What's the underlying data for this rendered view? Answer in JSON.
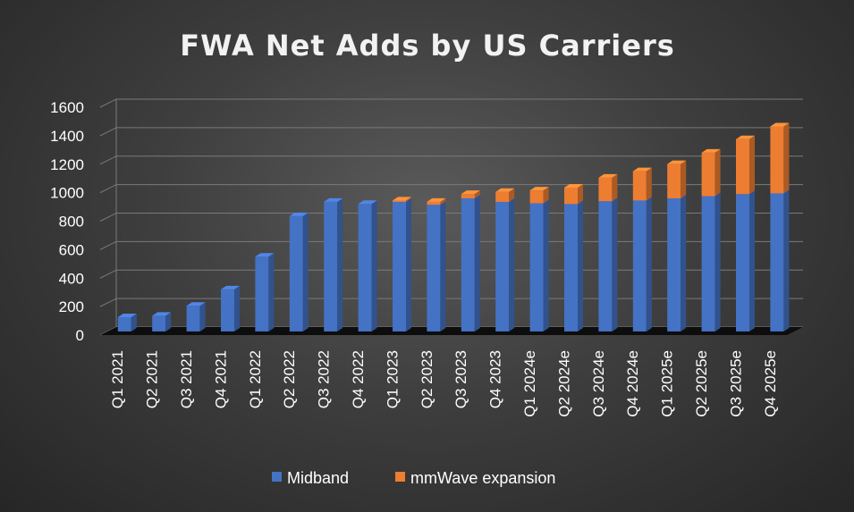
{
  "chart_data": {
    "type": "bar",
    "stacked": true,
    "three_d": true,
    "title": "FWA Net Adds by US Carriers",
    "xlabel": "",
    "ylabel": "",
    "ylim": [
      0,
      1600
    ],
    "yticks": [
      0,
      200,
      400,
      600,
      800,
      1000,
      1200,
      1400,
      1600
    ],
    "grid": true,
    "legend_position": "bottom",
    "categories": [
      "Q1 2021",
      "Q2 2021",
      "Q3 2021",
      "Q4 2021",
      "Q1 2022",
      "Q2 2022",
      "Q3 2022",
      "Q4 2022",
      "Q1 2023",
      "Q2 2023",
      "Q3 2023",
      "Q4 2023",
      "Q1 2024e",
      "Q2 2024e",
      "Q3 2024e",
      "Q4 2024e",
      "Q1 2025e",
      "Q2 2025e",
      "Q3 2025e",
      "Q4 2025e"
    ],
    "series": [
      {
        "name": "Midband",
        "color": "#4472c4",
        "values": [
          100,
          110,
          180,
          295,
          525,
          810,
          910,
          895,
          910,
          890,
          935,
          910,
          900,
          895,
          915,
          920,
          935,
          950,
          965,
          970
        ]
      },
      {
        "name": "mmWave expansion",
        "color": "#ed7d31",
        "values": [
          0,
          0,
          0,
          0,
          0,
          0,
          0,
          0,
          10,
          20,
          30,
          70,
          90,
          115,
          165,
          205,
          240,
          305,
          385,
          470
        ]
      }
    ]
  }
}
